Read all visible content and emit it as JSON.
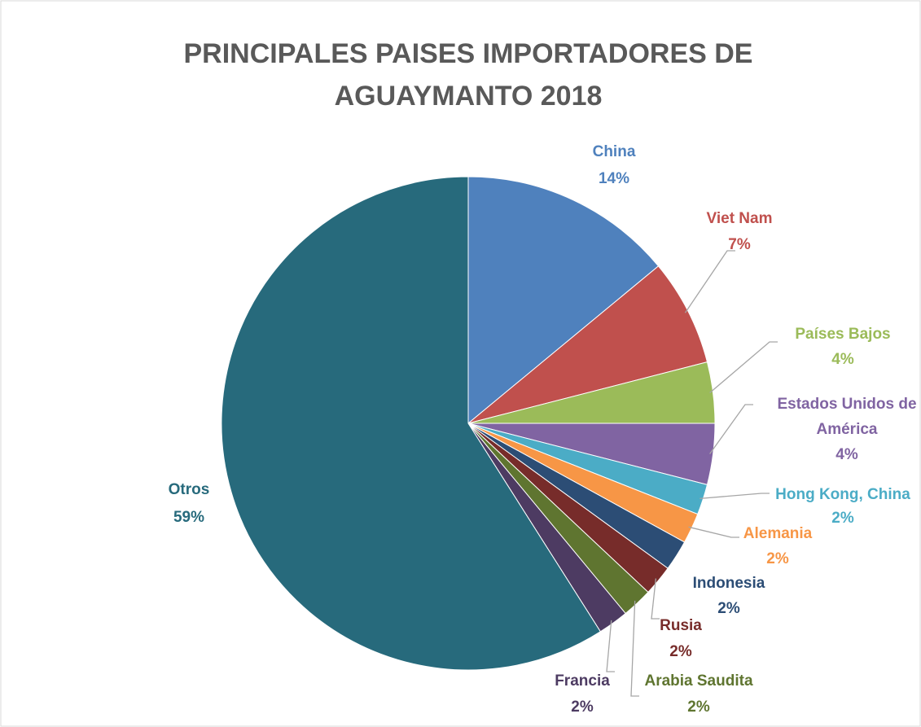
{
  "chart_data": {
    "type": "pie",
    "title": "PRINCIPALES PAISES IMPORTADORES DE AGUAYMANTO 2018",
    "categories": [
      "China",
      "Viet Nam",
      "Países Bajos",
      "Estados Unidos de América",
      "Hong Kong, China",
      "Alemania",
      "Indonesia",
      "Rusia",
      "Arabia Saudita",
      "Francia",
      "Otros"
    ],
    "values": [
      14,
      7,
      4,
      4,
      2,
      2,
      2,
      2,
      2,
      2,
      59
    ],
    "value_labels": [
      "14%",
      "7%",
      "4%",
      "4%",
      "2%",
      "2%",
      "2%",
      "2%",
      "2%",
      "2%",
      "59%"
    ],
    "colors": [
      "#4f81bd",
      "#c0504d",
      "#9bbb59",
      "#8064a2",
      "#4bacc6",
      "#f79646",
      "#2c4d75",
      "#772c2a",
      "#5f7530",
      "#4d3b62",
      "#276a7c"
    ]
  }
}
